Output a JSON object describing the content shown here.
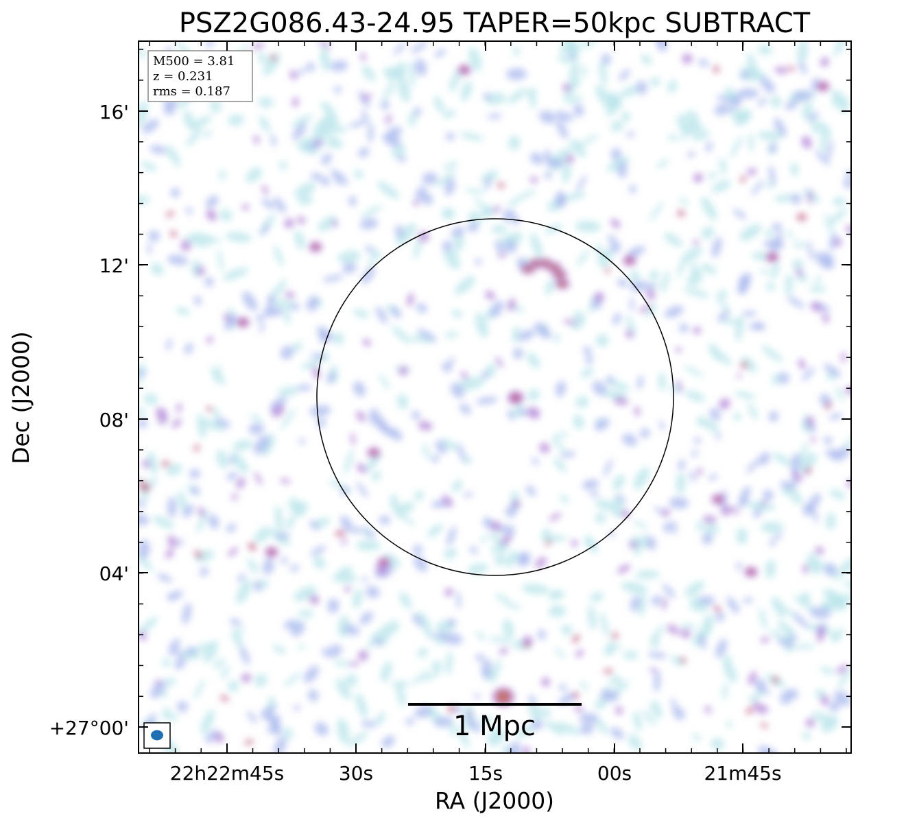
{
  "title": "PSZ2G086.43-24.95 TAPER=50kpc SUBTRACT",
  "axes": {
    "xlabel": "RA (J2000)",
    "ylabel": "Dec (J2000)",
    "xticks": [
      "22h22m45s",
      "30s",
      "15s",
      "00s",
      "21m45s"
    ],
    "yticks": [
      "16'",
      "12'",
      "08'",
      "04'",
      "+27°00'"
    ]
  },
  "info_box": {
    "mass": "M500 = 3.81",
    "redshift": "z = 0.231",
    "rms": "rms = 0.187"
  },
  "scale_bar": {
    "label": "1 Mpc"
  },
  "colors": {
    "faint": "#b8e4ea",
    "low": "#a9b8ee",
    "mid": "#b48ada",
    "high": "#c2608a",
    "peak": "#c8705a",
    "beam": "#1f6fb4",
    "frame": "#000000",
    "circle": "#000000"
  },
  "emission_map": "radio continuum noise field with compact sources; peak emission features near the top arc and the bottom-centre source"
}
